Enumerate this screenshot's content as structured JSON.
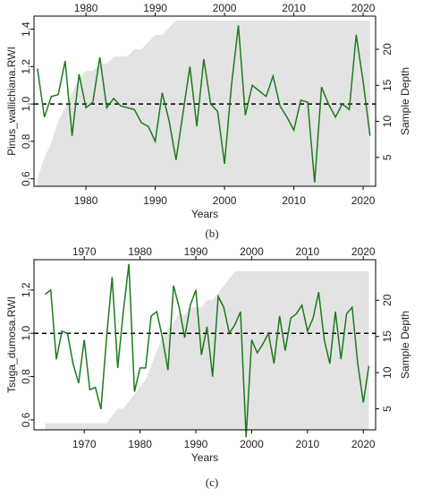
{
  "chart_data": [
    {
      "type": "line",
      "caption": "(b)",
      "xlabel": "Years",
      "ylabel": "Pinus_wallichiana.RWI",
      "y2label": "Sample Depth",
      "x": [
        1973,
        1974,
        1975,
        1976,
        1977,
        1978,
        1979,
        1980,
        1981,
        1982,
        1983,
        1984,
        1985,
        1986,
        1987,
        1988,
        1989,
        1990,
        1991,
        1992,
        1993,
        1994,
        1995,
        1996,
        1997,
        1998,
        1999,
        2000,
        2001,
        2002,
        2003,
        2004,
        2005,
        2006,
        2007,
        2008,
        2009,
        2010,
        2011,
        2012,
        2013,
        2014,
        2015,
        2016,
        2017,
        2018,
        2019,
        2020,
        2021
      ],
      "series": [
        {
          "color": "#1b7a1b",
          "values": [
            1.19,
            0.93,
            1.04,
            1.05,
            1.23,
            0.83,
            1.16,
            0.98,
            1.01,
            1.25,
            0.98,
            1.03,
            0.99,
            0.98,
            0.97,
            0.9,
            0.88,
            0.8,
            1.06,
            0.91,
            0.7,
            0.95,
            1.2,
            0.88,
            1.24,
            1.0,
            0.96,
            0.68,
            1.1,
            1.42,
            0.94,
            1.1,
            1.07,
            1.04,
            1.15,
            0.99,
            0.93,
            0.86,
            1.02,
            1.01,
            0.58,
            1.09,
            1.0,
            0.93,
            1.0,
            0.97,
            1.37,
            1.12,
            0.83
          ]
        },
        {
          "color": "#e3e3e3",
          "axis": "y2",
          "values": [
            2,
            5,
            7,
            10,
            12,
            14,
            16,
            17,
            17,
            18,
            18,
            19,
            19,
            19,
            20,
            20,
            21,
            22,
            22,
            23,
            24,
            24,
            24,
            24,
            24,
            24,
            24,
            24,
            24,
            24,
            24,
            24,
            24,
            24,
            24,
            24,
            24,
            24,
            24,
            24,
            24,
            24,
            24,
            24,
            24,
            24,
            24,
            24,
            24
          ]
        }
      ],
      "refline": 1,
      "xlim": [
        1972.5,
        2021.8
      ],
      "xticks": [
        1980,
        1990,
        2000,
        2010,
        2020
      ],
      "ylim": [
        0.56,
        1.47
      ],
      "yticks": [
        0.6,
        0.8,
        {
          "value": 1,
          "label": "1.0"
        },
        1.2,
        1.4
      ],
      "y2lim": [
        1,
        24.6
      ],
      "y2ticks": [
        5,
        10,
        15,
        20
      ]
    },
    {
      "type": "line",
      "caption": "(c)",
      "xlabel": "Years",
      "ylabel": "Tsuga_dumosa.RWI",
      "y2label": "Sample Depth",
      "x": [
        1963,
        1964,
        1965,
        1966,
        1967,
        1968,
        1969,
        1970,
        1971,
        1972,
        1973,
        1974,
        1975,
        1976,
        1977,
        1978,
        1979,
        1980,
        1981,
        1982,
        1983,
        1984,
        1985,
        1986,
        1987,
        1988,
        1989,
        1990,
        1991,
        1992,
        1993,
        1994,
        1995,
        1996,
        1997,
        1998,
        1999,
        2000,
        2001,
        2002,
        2003,
        2004,
        2005,
        2006,
        2007,
        2008,
        2009,
        2010,
        2011,
        2012,
        2013,
        2014,
        2015,
        2016,
        2017,
        2018,
        2019,
        2020,
        2021
      ],
      "series": [
        {
          "color": "#1b7a1b",
          "values": [
            1.18,
            1.2,
            0.88,
            1.01,
            1.0,
            0.86,
            0.77,
            0.97,
            0.74,
            0.75,
            0.65,
            0.98,
            1.26,
            0.84,
            1.1,
            1.32,
            0.73,
            0.84,
            0.84,
            1.08,
            1.1,
            0.98,
            0.83,
            1.22,
            1.12,
            0.98,
            1.13,
            1.2,
            0.9,
            1.03,
            0.8,
            1.17,
            1.12,
            1.0,
            1.04,
            1.1,
            0.52,
            0.97,
            0.91,
            0.95,
            1.0,
            0.86,
            1.08,
            0.92,
            1.07,
            1.09,
            1.13,
            1.01,
            1.07,
            1.19,
            0.97,
            0.86,
            1.1,
            0.88,
            1.09,
            1.12,
            0.86,
            0.68,
            0.85
          ]
        },
        {
          "color": "#e3e3e3",
          "axis": "y2",
          "values": [
            3,
            3,
            3,
            3,
            3,
            3,
            3,
            3,
            3,
            3,
            3,
            3,
            4,
            5,
            5,
            6,
            7,
            8,
            9,
            11,
            13,
            15,
            16,
            17,
            18,
            18,
            19,
            19,
            19,
            20,
            20,
            21,
            22,
            23,
            24,
            24,
            24,
            24,
            24,
            24,
            24,
            24,
            24,
            24,
            24,
            24,
            24,
            24,
            24,
            24,
            24,
            24,
            24,
            24,
            24,
            24,
            24,
            24,
            24
          ]
        }
      ],
      "refline": 1,
      "xlim": [
        1961,
        2022.2
      ],
      "xticks": [
        1970,
        1980,
        1990,
        2000,
        2010,
        2020
      ],
      "ylim": [
        0.554,
        1.34
      ],
      "yticks": [
        0.6,
        0.8,
        {
          "value": 1,
          "label": "1.0"
        },
        1.2
      ],
      "y2lim": [
        2.1,
        25.6
      ],
      "y2ticks": [
        5,
        10,
        15,
        20
      ]
    }
  ]
}
